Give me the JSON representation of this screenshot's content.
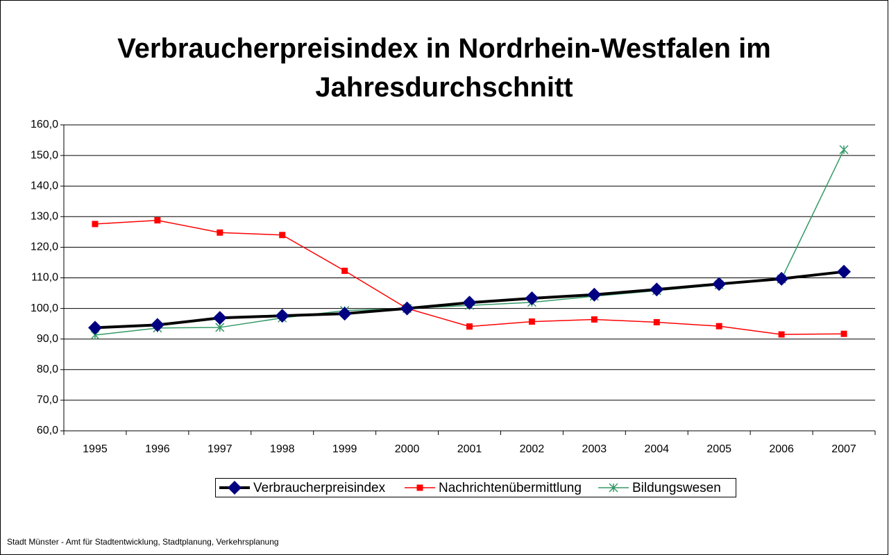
{
  "chart_data": {
    "type": "line",
    "title": "Verbraucherpreisindex in Nordrhein-Westfalen im Jahresdurchschnitt",
    "source": "Stadt Münster - Amt für Stadtentwicklung, Stadtplanung, Verkehrsplanung",
    "categories": [
      "1995",
      "1996",
      "1997",
      "1998",
      "1999",
      "2000",
      "2001",
      "2002",
      "2003",
      "2004",
      "2005",
      "2006",
      "2007"
    ],
    "series": [
      {
        "name": "Verbraucherpreisindex",
        "color": "#000000",
        "marker": "diamond",
        "marker_color": "#000080",
        "line_width": 4,
        "values": [
          93.7,
          94.6,
          96.9,
          97.6,
          98.3,
          100.0,
          101.9,
          103.3,
          104.5,
          106.2,
          108.0,
          109.7,
          112.0
        ]
      },
      {
        "name": "Nachrichtenübermittlung",
        "color": "#ff0000",
        "marker": "square",
        "marker_color": "#ff0000",
        "line_width": 1.5,
        "values": [
          127.6,
          128.8,
          124.8,
          124.0,
          112.3,
          100.0,
          94.1,
          95.7,
          96.4,
          95.5,
          94.2,
          91.5,
          91.7
        ]
      },
      {
        "name": "Bildungswesen",
        "color": "#339966",
        "marker": "asterisk",
        "marker_color": "#339966",
        "line_width": 1.5,
        "values": [
          91.3,
          93.6,
          93.8,
          96.9,
          99.3,
          100.0,
          101.0,
          102.0,
          104.0,
          105.8,
          107.7,
          109.6,
          151.9
        ]
      }
    ],
    "ylim": [
      60,
      160
    ],
    "yticks": [
      {
        "value": 60,
        "label": "60,0"
      },
      {
        "value": 70,
        "label": "70,0"
      },
      {
        "value": 80,
        "label": "80,0"
      },
      {
        "value": 90,
        "label": "90,0"
      },
      {
        "value": 100,
        "label": "100,0"
      },
      {
        "value": 110,
        "label": "110,0"
      },
      {
        "value": 120,
        "label": "120,0"
      },
      {
        "value": 130,
        "label": "130,0"
      },
      {
        "value": 140,
        "label": "140,0"
      },
      {
        "value": 150,
        "label": "150,0"
      },
      {
        "value": 160,
        "label": "160,0"
      }
    ],
    "grid": true,
    "legend": "bottom"
  }
}
